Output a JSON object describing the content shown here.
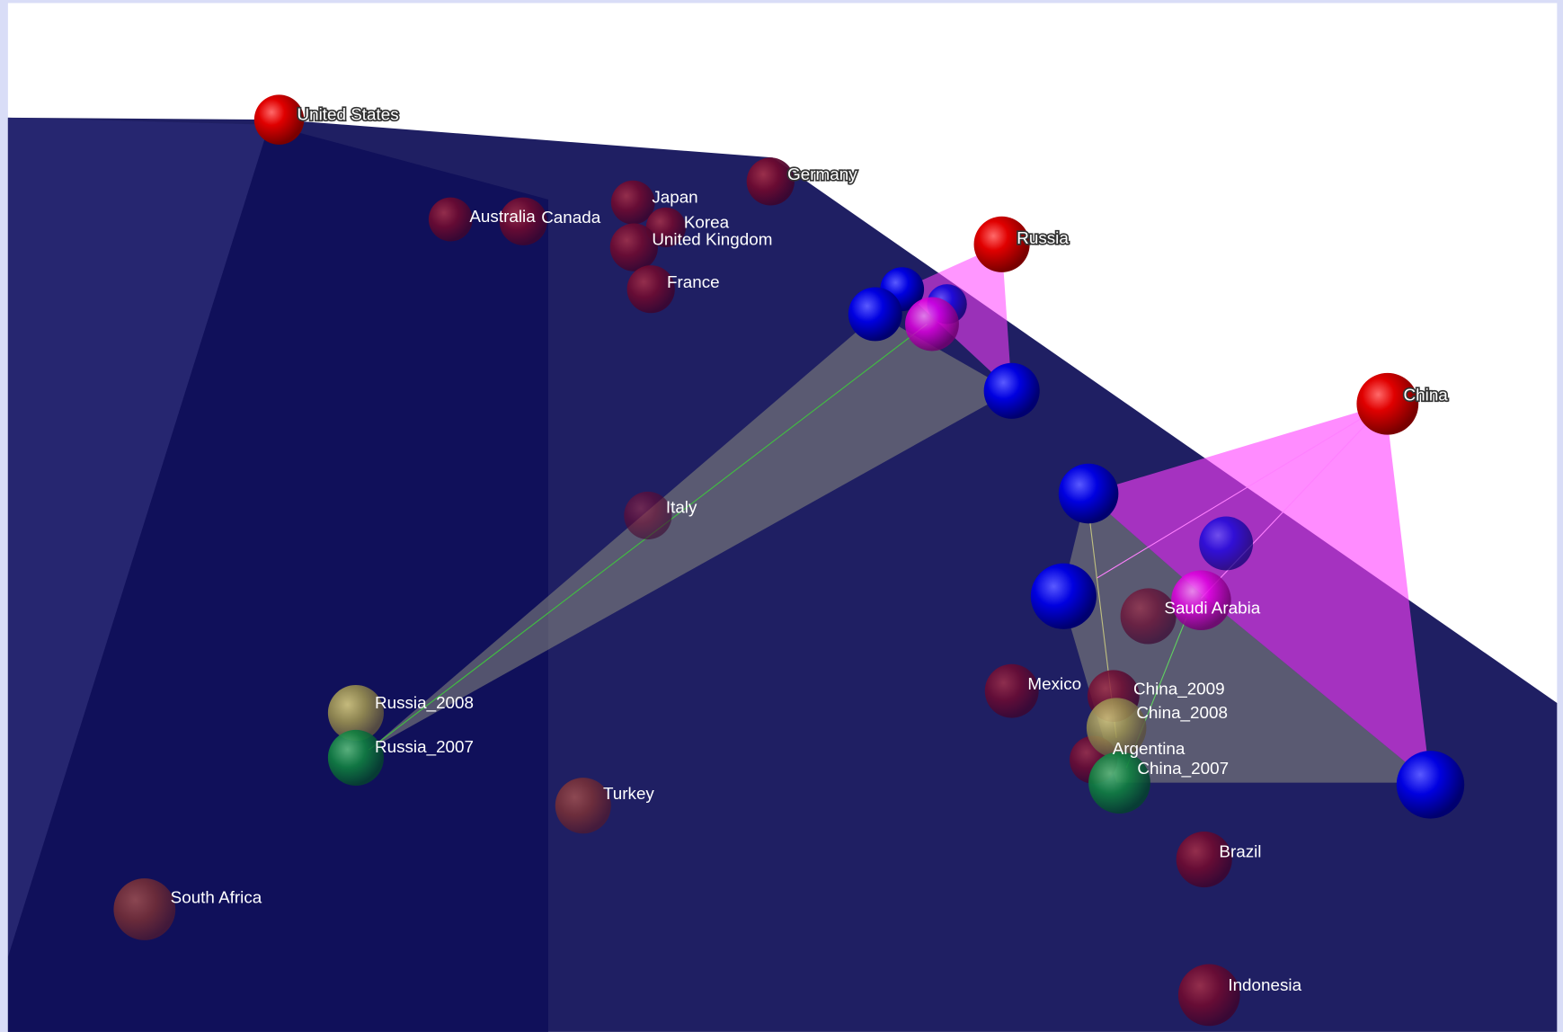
{
  "labels": [
    "United States",
    "Germany",
    "Japan",
    "Australia",
    "Canada",
    "Korea",
    "United Kingdom",
    "Russia",
    "France",
    "China",
    "Italy",
    "Saudi Arabia",
    "Mexico",
    "China_2009",
    "Russia_2008",
    "China_2008",
    "Russia_2007",
    "Argentina",
    "China_2007",
    "Turkey",
    "Brazil",
    "South Africa",
    "Indonesia"
  ]
}
